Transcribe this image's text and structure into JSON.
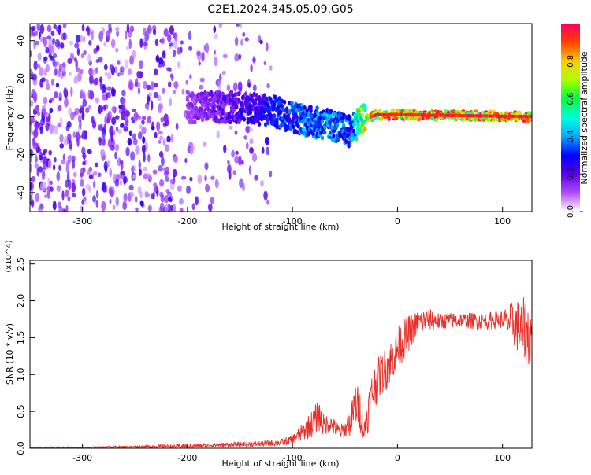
{
  "title": "C2E1.2024.345.05.09.G05",
  "chart_data": [
    {
      "type": "heatmap",
      "xlabel": "Height of straight line (km)",
      "ylabel": "Frequency (Hz)",
      "xlim": [
        -350,
        128
      ],
      "ylim": [
        -50,
        49
      ],
      "x_ticks": [
        -300,
        -200,
        -100,
        0,
        100
      ],
      "y_ticks": [
        -40,
        -20,
        0,
        20,
        40
      ],
      "colorbar": {
        "label": "Normalized spectral amplitude",
        "range": [
          0,
          1
        ],
        "ticks": [
          "0.0",
          "0.2",
          "0.4",
          "0.6",
          "0.8"
        ],
        "colors": [
          "#ffffff",
          "#b04cff",
          "#5a00e6",
          "#0000ff",
          "#00aaff",
          "#00ffdd",
          "#00ff40",
          "#aaff00",
          "#ffcc00",
          "#ff4000",
          "#ff0060"
        ]
      },
      "features": [
        {
          "name": "noise",
          "x_range": [
            -350,
            -120
          ],
          "freq_range": [
            -50,
            49
          ],
          "amplitude": 0.1
        },
        {
          "name": "signal-track",
          "points": [
            [
              -200,
              5
            ],
            [
              -150,
              5
            ],
            [
              -120,
              3
            ],
            [
              -100,
              0
            ],
            [
              -80,
              -3
            ],
            [
              -60,
              -5
            ],
            [
              -45,
              -8
            ],
            [
              -40,
              -4
            ],
            [
              -30,
              -1
            ],
            [
              -20,
              1
            ],
            [
              0,
              1
            ],
            [
              128,
              0
            ]
          ],
          "amplitude": [
            0.15,
            0.25,
            0.35,
            0.4,
            0.45,
            0.45,
            0.4,
            0.6,
            0.85,
            0.95,
            0.95,
            0.95
          ]
        }
      ]
    },
    {
      "type": "line",
      "xlabel": "Height of straight line (km)",
      "ylabel": "SNR (10 * v/v)",
      "exponent_label": "(x10^4)",
      "xlim": [
        -350,
        128
      ],
      "ylim": [
        0,
        2.55
      ],
      "x_ticks": [
        -300,
        -200,
        -100,
        0,
        100
      ],
      "y_ticks": [
        "0.0",
        "0.5",
        "1.0",
        "1.5",
        "2.0",
        "2.5"
      ],
      "color": "#e8302a",
      "series": [
        {
          "x": [
            -350,
            -300,
            -250,
            -200,
            -160,
            -130,
            -110,
            -100,
            -90,
            -80,
            -75,
            -70,
            -65,
            -60,
            -55,
            -50,
            -45,
            -40,
            -35,
            -32,
            -30,
            -25,
            -20,
            -10,
            0,
            10,
            20,
            30,
            40,
            60,
            80,
            100,
            110,
            120,
            128
          ],
          "y": [
            0.01,
            0.01,
            0.02,
            0.03,
            0.05,
            0.06,
            0.08,
            0.12,
            0.22,
            0.35,
            0.45,
            0.3,
            0.35,
            0.28,
            0.22,
            0.25,
            0.35,
            0.6,
            0.5,
            0.2,
            0.35,
            0.7,
            0.9,
            1.1,
            1.35,
            1.55,
            1.7,
            1.75,
            1.72,
            1.74,
            1.72,
            1.75,
            1.7,
            1.6,
            1.5
          ],
          "spread": [
            0.01,
            0.01,
            0.015,
            0.03,
            0.03,
            0.04,
            0.05,
            0.06,
            0.12,
            0.2,
            0.22,
            0.15,
            0.12,
            0.12,
            0.1,
            0.12,
            0.2,
            0.3,
            0.3,
            0.12,
            0.25,
            0.3,
            0.3,
            0.3,
            0.3,
            0.25,
            0.18,
            0.15,
            0.12,
            0.1,
            0.12,
            0.12,
            0.3,
            0.45,
            0.45
          ]
        }
      ]
    }
  ]
}
